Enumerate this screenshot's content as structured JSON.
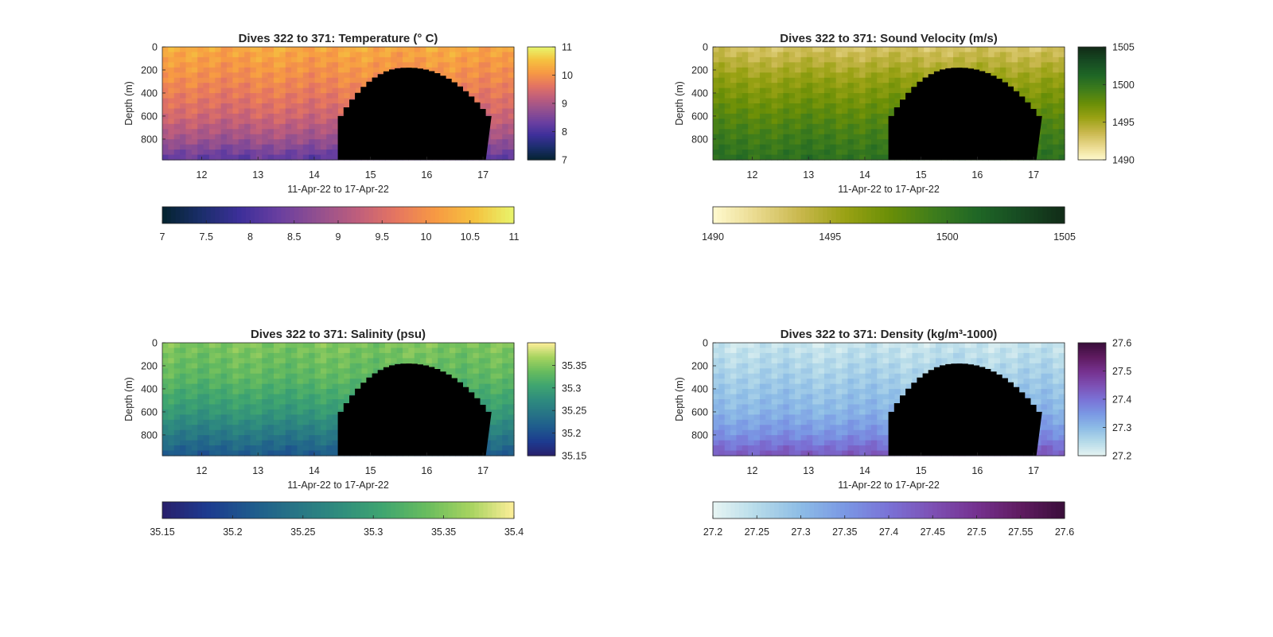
{
  "figure_background": "#ffffff",
  "chart_data": [
    {
      "type": "heatmap",
      "title": "Dives 322 to 371: Temperature (° C)",
      "xlabel": "11-Apr-22 to 17-Apr-22",
      "ylabel": "Depth (m)",
      "xlim": [
        11.3,
        17.55
      ],
      "ylim": [
        0,
        980
      ],
      "y_direction": "reversed",
      "x_ticks": [
        12,
        13,
        14,
        15,
        16,
        17
      ],
      "y_ticks": [
        0,
        200,
        400,
        600,
        800
      ],
      "colorbar_right": {
        "range": [
          7,
          11
        ],
        "ticks": [
          7,
          8,
          9,
          10,
          11
        ]
      },
      "colorbar_bottom": {
        "range": [
          7,
          11
        ],
        "ticks": [
          7,
          7.5,
          8,
          8.5,
          9,
          9.5,
          10,
          10.5,
          11
        ]
      },
      "colormap": "thermal",
      "profile_by_depth": {
        "depth": [
          0,
          300,
          600,
          800,
          980
        ],
        "value": [
          10.3,
          9.9,
          9.4,
          8.9,
          8.2
        ]
      },
      "no_data_color": "#999999",
      "no_data_region": {
        "x_start": 14.42,
        "x_end": 17.05,
        "shallowest_depth": 180,
        "shallowest_at_x": 15.6
      },
      "grid": false
    },
    {
      "type": "heatmap",
      "title": "Dives 322 to 371: Sound Velocity (m/s)",
      "xlabel": "11-Apr-22 to 17-Apr-22",
      "ylabel": "Depth (m)",
      "xlim": [
        11.3,
        17.55
      ],
      "ylim": [
        0,
        980
      ],
      "y_direction": "reversed",
      "x_ticks": [
        12,
        13,
        14,
        15,
        16,
        17
      ],
      "y_ticks": [
        0,
        200,
        400,
        600,
        800
      ],
      "colorbar_right": {
        "range": [
          1490,
          1505
        ],
        "ticks": [
          1490,
          1495,
          1500,
          1505
        ]
      },
      "colorbar_bottom": {
        "range": [
          1490,
          1505
        ],
        "ticks": [
          1490,
          1495,
          1500,
          1505
        ]
      },
      "colormap": "speed",
      "profile_by_depth": {
        "depth": [
          0,
          300,
          600,
          800,
          980
        ],
        "value": [
          1493.0,
          1496.0,
          1498.2,
          1499.5,
          1500.5
        ]
      },
      "no_data_color": "#999999",
      "no_data_region": {
        "x_start": 14.42,
        "x_end": 17.05,
        "shallowest_depth": 180,
        "shallowest_at_x": 15.6
      },
      "grid": false
    },
    {
      "type": "heatmap",
      "title": "Dives 322 to 371: Salinity (psu)",
      "xlabel": "11-Apr-22 to 17-Apr-22",
      "ylabel": "Depth (m)",
      "xlim": [
        11.3,
        17.55
      ],
      "ylim": [
        0,
        980
      ],
      "y_direction": "reversed",
      "x_ticks": [
        12,
        13,
        14,
        15,
        16,
        17
      ],
      "y_ticks": [
        0,
        200,
        400,
        600,
        800
      ],
      "colorbar_right": {
        "range": [
          35.15,
          35.4
        ],
        "ticks": [
          35.15,
          35.2,
          35.25,
          35.3,
          35.35
        ]
      },
      "colorbar_bottom": {
        "range": [
          35.15,
          35.4
        ],
        "ticks": [
          35.15,
          35.2,
          35.25,
          35.3,
          35.35,
          35.4
        ]
      },
      "colormap": "haline",
      "profile_by_depth": {
        "depth": [
          0,
          300,
          600,
          800,
          980
        ],
        "value": [
          35.35,
          35.33,
          35.29,
          35.25,
          35.21
        ]
      },
      "no_data_color": "#999999",
      "no_data_region": {
        "x_start": 14.42,
        "x_end": 17.05,
        "shallowest_depth": 180,
        "shallowest_at_x": 15.6
      },
      "grid": false
    },
    {
      "type": "heatmap",
      "title": "Dives 322 to 371: Density (kg/m³-1000)",
      "xlabel": "11-Apr-22 to 17-Apr-22",
      "ylabel": "Depth (m)",
      "xlim": [
        11.3,
        17.55
      ],
      "ylim": [
        0,
        980
      ],
      "y_direction": "reversed",
      "x_ticks": [
        12,
        13,
        14,
        15,
        16,
        17
      ],
      "y_ticks": [
        0,
        200,
        400,
        600,
        800
      ],
      "colorbar_right": {
        "range": [
          27.2,
          27.6
        ],
        "ticks": [
          27.2,
          27.3,
          27.4,
          27.5,
          27.6
        ]
      },
      "colorbar_bottom": {
        "range": [
          27.2,
          27.6
        ],
        "ticks": [
          27.2,
          27.25,
          27.3,
          27.35,
          27.4,
          27.45,
          27.5,
          27.55,
          27.6
        ]
      },
      "colormap": "dense",
      "profile_by_depth": {
        "depth": [
          0,
          300,
          600,
          800,
          980
        ],
        "value": [
          27.23,
          27.27,
          27.31,
          27.36,
          27.44
        ]
      },
      "no_data_color": "#999999",
      "no_data_region": {
        "x_start": 14.42,
        "x_end": 17.05,
        "shallowest_depth": 180,
        "shallowest_at_x": 15.6
      },
      "grid": false
    }
  ]
}
